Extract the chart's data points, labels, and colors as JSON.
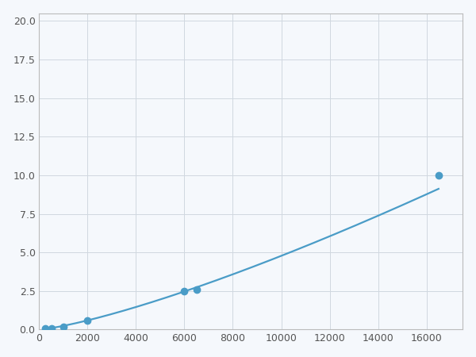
{
  "x_points": [
    250,
    500,
    1000,
    2000,
    6000,
    16500
  ],
  "y_points": [
    0.05,
    0.1,
    0.18,
    0.6,
    2.5,
    10.0
  ],
  "marker_x": [
    250,
    500,
    1000,
    2000,
    6000,
    6500,
    16500
  ],
  "marker_y": [
    0.05,
    0.1,
    0.18,
    0.6,
    2.5,
    2.6,
    10.0
  ],
  "line_color": "#4a9cc7",
  "marker_color": "#4a9cc7",
  "marker_size": 6,
  "linewidth": 1.6,
  "xlim": [
    0,
    17500
  ],
  "ylim": [
    0,
    20.5
  ],
  "xticks": [
    0,
    2000,
    4000,
    6000,
    8000,
    10000,
    12000,
    14000,
    16000
  ],
  "yticks": [
    0.0,
    2.5,
    5.0,
    7.5,
    10.0,
    12.5,
    15.0,
    17.5,
    20.0
  ],
  "grid_color": "#d0d8e0",
  "grid_linewidth": 0.7,
  "background_color": "#f5f8fc",
  "spine_color": "#bbbbbb"
}
